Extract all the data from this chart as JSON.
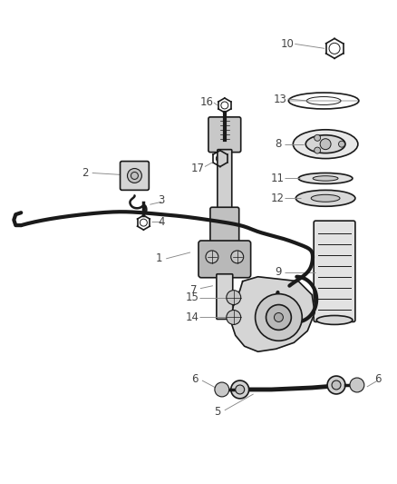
{
  "background_color": "#ffffff",
  "line_color": "#1a1a1a",
  "label_color": "#444444",
  "label_fontsize": 8.5,
  "leader_color": "#888888",
  "leader_lw": 0.7
}
